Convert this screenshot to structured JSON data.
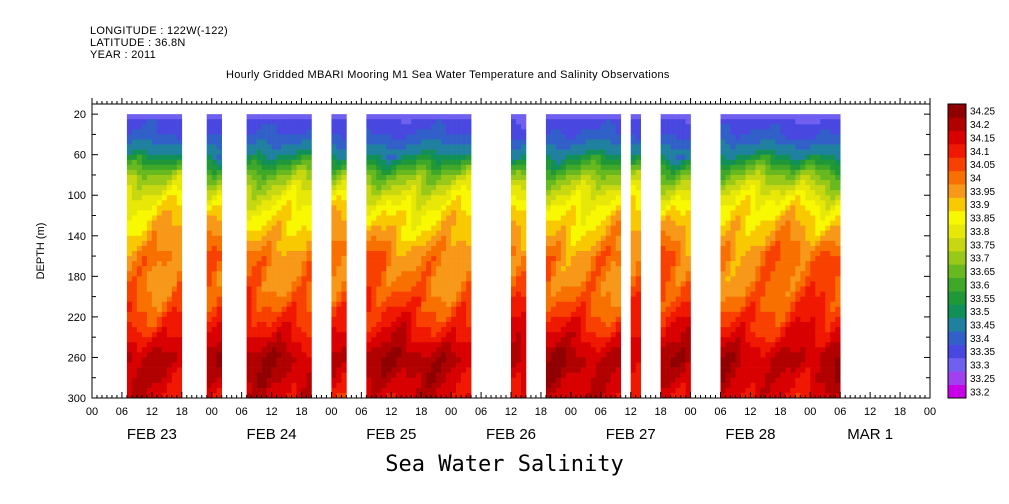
{
  "header": {
    "longitude": "LONGITUDE : 122W(-122)",
    "latitude": "LATITUDE : 36.8N",
    "year": "YEAR : 2011",
    "title": "Hourly Gridded MBARI Mooring M1 Sea Water Temperature and Salinity Observations"
  },
  "footer": {
    "variable_title": "Sea Water Salinity"
  },
  "chart_data": {
    "type": "heatmap",
    "title": "Hourly Gridded MBARI Mooring M1 Sea Water Temperature and Salinity Observations",
    "xlabel": "",
    "ylabel": "DEPTH (m)",
    "variable": "Sea Water Salinity",
    "x_unit": "hours since 2011-02-23 00:00",
    "x_range": [
      0,
      168
    ],
    "ylim": [
      0,
      300
    ],
    "y_inverted": true,
    "y_ticks": [
      20,
      60,
      100,
      140,
      180,
      220,
      260,
      300
    ],
    "x_hour_labels": [
      "00",
      "06",
      "12",
      "18",
      "00",
      "06",
      "12",
      "18",
      "00",
      "06",
      "12",
      "18",
      "00",
      "06",
      "12",
      "18",
      "00",
      "06",
      "12",
      "18",
      "00",
      "06",
      "12",
      "18",
      "00",
      "06",
      "12",
      "18",
      "00"
    ],
    "x_day_labels": [
      "FEB 23",
      "FEB 24",
      "FEB 25",
      "FEB 26",
      "FEB 27",
      "FEB 28",
      "MAR  1"
    ],
    "colorbar_levels": [
      "33.2",
      "33.25",
      "33.3",
      "33.35",
      "33.4",
      "33.45",
      "33.5",
      "33.55",
      "33.6",
      "33.65",
      "33.7",
      "33.75",
      "33.8",
      "33.85",
      "33.9",
      "33.95",
      "34",
      "34.05",
      "34.1",
      "34.15",
      "34.2",
      "34.25"
    ],
    "colorbar_colors": [
      "#c800e8",
      "#a040f0",
      "#7060f0",
      "#4848e0",
      "#3060c8",
      "#2080a0",
      "#109058",
      "#209838",
      "#40a828",
      "#68b820",
      "#98c818",
      "#c8d810",
      "#e8e808",
      "#f8f800",
      "#f8c800",
      "#f89818",
      "#f87000",
      "#f84000",
      "#f01800",
      "#d80000",
      "#b00000",
      "#900000"
    ],
    "data_segments_hours": [
      [
        7,
        18
      ],
      [
        23,
        26
      ],
      [
        31,
        44
      ],
      [
        48,
        51
      ],
      [
        55,
        76
      ],
      [
        84,
        87
      ],
      [
        91,
        106
      ],
      [
        108,
        110
      ],
      [
        114,
        120
      ],
      [
        126,
        150
      ]
    ],
    "profile_depths_m": [
      20,
      40,
      60,
      80,
      100,
      120,
      140,
      160,
      180,
      200,
      220,
      240,
      260,
      280,
      300
    ],
    "typical_profile_salinity": [
      33.35,
      33.4,
      33.5,
      33.7,
      33.82,
      33.9,
      33.95,
      34.02,
      34.02,
      34.05,
      34.1,
      34.15,
      34.22,
      34.2,
      34.16
    ]
  }
}
